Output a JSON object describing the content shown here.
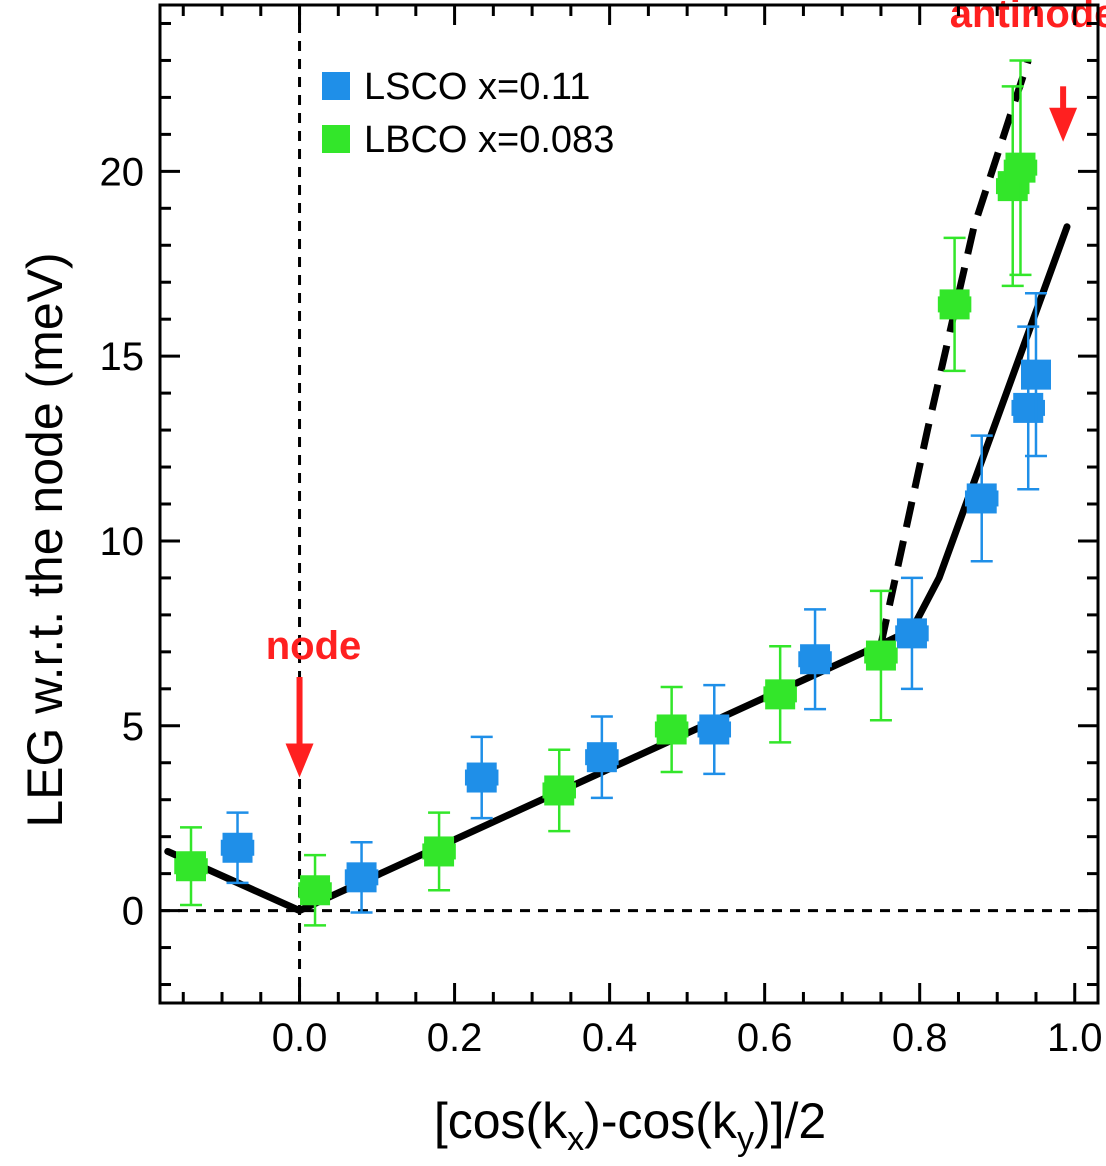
{
  "chart_data": {
    "type": "scatter",
    "title": "",
    "xlabel_parts": [
      "[cos(k",
      "x",
      ")-cos(k",
      "y",
      ")]/2"
    ],
    "ylabel": "LEG w.r.t. the node (meV)",
    "xlim": [
      -0.18,
      1.03
    ],
    "ylim": [
      -2.5,
      24.5
    ],
    "x_ticks": [
      0.0,
      0.2,
      0.4,
      0.6,
      0.8,
      1.0
    ],
    "x_tick_labels": [
      "0.0",
      "0.2",
      "0.4",
      "0.6",
      "0.8",
      "1.0"
    ],
    "y_ticks": [
      0,
      5,
      10,
      15,
      20
    ],
    "y_tick_labels": [
      "0",
      "5",
      "10",
      "15",
      "20"
    ],
    "legend_position": "top-left",
    "series": [
      {
        "name": "LSCO x=0.11",
        "color": "#1f8fe8",
        "points": [
          {
            "x": -0.08,
            "y": 1.7,
            "xerr": 0.02,
            "yerr": 0.95
          },
          {
            "x": 0.08,
            "y": 0.9,
            "xerr": 0.02,
            "yerr": 0.95
          },
          {
            "x": 0.235,
            "y": 3.6,
            "xerr": 0.02,
            "yerr": 1.1
          },
          {
            "x": 0.39,
            "y": 4.15,
            "xerr": 0.02,
            "yerr": 1.1
          },
          {
            "x": 0.535,
            "y": 4.9,
            "xerr": 0.02,
            "yerr": 1.2
          },
          {
            "x": 0.665,
            "y": 6.8,
            "xerr": 0.02,
            "yerr": 1.35
          },
          {
            "x": 0.79,
            "y": 7.5,
            "xerr": 0.02,
            "yerr": 1.5
          },
          {
            "x": 0.88,
            "y": 11.15,
            "xerr": 0.02,
            "yerr": 1.7
          },
          {
            "x": 0.94,
            "y": 13.6,
            "xerr": 0.02,
            "yerr": 2.2
          },
          {
            "x": 0.95,
            "y": 14.5,
            "xerr": 0.015,
            "yerr": 2.2
          }
        ]
      },
      {
        "name": "LBCO x=0.083",
        "color": "#33e62a",
        "points": [
          {
            "x": -0.14,
            "y": 1.2,
            "xerr": 0.02,
            "yerr": 1.05
          },
          {
            "x": 0.02,
            "y": 0.55,
            "xerr": 0.02,
            "yerr": 0.95
          },
          {
            "x": 0.18,
            "y": 1.6,
            "xerr": 0.02,
            "yerr": 1.05
          },
          {
            "x": 0.335,
            "y": 3.25,
            "xerr": 0.02,
            "yerr": 1.1
          },
          {
            "x": 0.48,
            "y": 4.9,
            "xerr": 0.02,
            "yerr": 1.15
          },
          {
            "x": 0.62,
            "y": 5.85,
            "xerr": 0.02,
            "yerr": 1.3
          },
          {
            "x": 0.75,
            "y": 6.9,
            "xerr": 0.02,
            "yerr": 1.75
          },
          {
            "x": 0.845,
            "y": 16.4,
            "xerr": 0.02,
            "yerr": 1.8
          },
          {
            "x": 0.92,
            "y": 19.6,
            "xerr": 0.02,
            "yerr": 2.7
          },
          {
            "x": 0.93,
            "y": 20.1,
            "xerr": 0.02,
            "yerr": 2.9
          }
        ]
      }
    ],
    "fit_solid": [
      [
        -0.17,
        1.6
      ],
      [
        0.0,
        0.0
      ],
      [
        0.75,
        7.2
      ],
      [
        0.79,
        7.6
      ],
      [
        0.825,
        9.0
      ],
      [
        0.99,
        18.5
      ]
    ],
    "fit_dashed": [
      [
        0.75,
        7.2
      ],
      [
        0.81,
        13.0
      ],
      [
        0.87,
        18.5
      ],
      [
        0.94,
        23.0
      ]
    ],
    "reference_lines": {
      "x": 0.0,
      "y": 0.0
    },
    "annotations": [
      {
        "text": "node",
        "x": 0.0,
        "arrow_from": 6.7,
        "arrow_to": 3.6,
        "label_y": 6.7
      },
      {
        "text": "antinode",
        "x": 0.985,
        "arrow_from": 22.3,
        "arrow_to": 20.8,
        "label_y": 23.9
      }
    ],
    "annotation_color": "#ff2020"
  }
}
